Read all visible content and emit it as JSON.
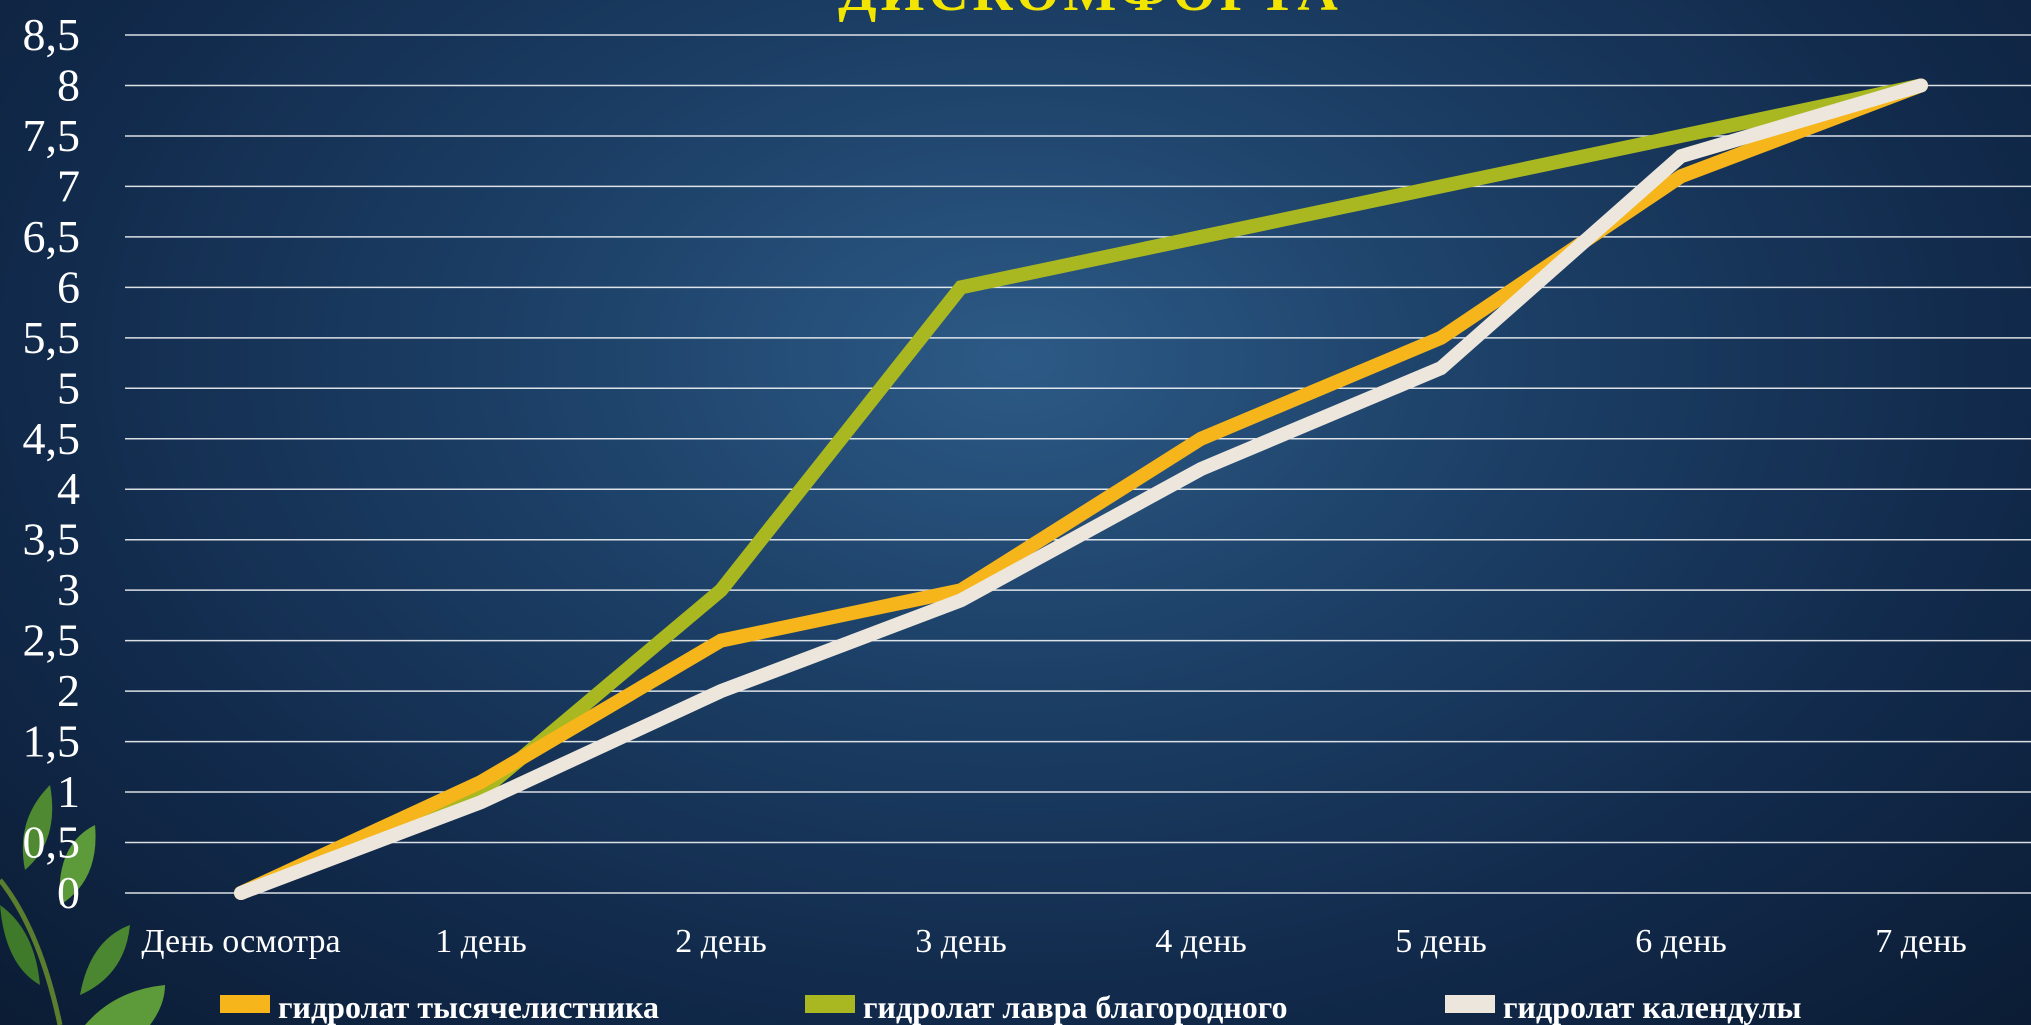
{
  "chart_data": {
    "type": "line",
    "title": "ДИСКОМФОРТА",
    "categories": [
      "День осмотра",
      "1 день",
      "2 день",
      "3 день",
      "4 день",
      "5 день",
      "6 день",
      "7 день"
    ],
    "yticks": [
      "0",
      "0,5",
      "1",
      "1,5",
      "2",
      "2,5",
      "3",
      "3,5",
      "4",
      "4,5",
      "5",
      "5,5",
      "6",
      "6,5",
      "7",
      "7,5",
      "8",
      "8,5"
    ],
    "ylim": [
      0,
      8.5
    ],
    "grid": true,
    "legend_position": "bottom",
    "series": [
      {
        "name": "гидролат тысячелистника",
        "color": "#f6b51a",
        "values": [
          0,
          1.1,
          2.5,
          3.0,
          4.5,
          5.5,
          7.1,
          8.0
        ]
      },
      {
        "name": "гидролат лавра благородного",
        "color": "#a9b820",
        "values": [
          0,
          1.0,
          3.0,
          6.0,
          6.5,
          7.0,
          7.5,
          8.0
        ]
      },
      {
        "name": "гидролат календулы",
        "color": "#ede6dc",
        "values": [
          0,
          0.9,
          2.0,
          2.9,
          4.2,
          5.2,
          7.3,
          8.0
        ]
      }
    ]
  }
}
